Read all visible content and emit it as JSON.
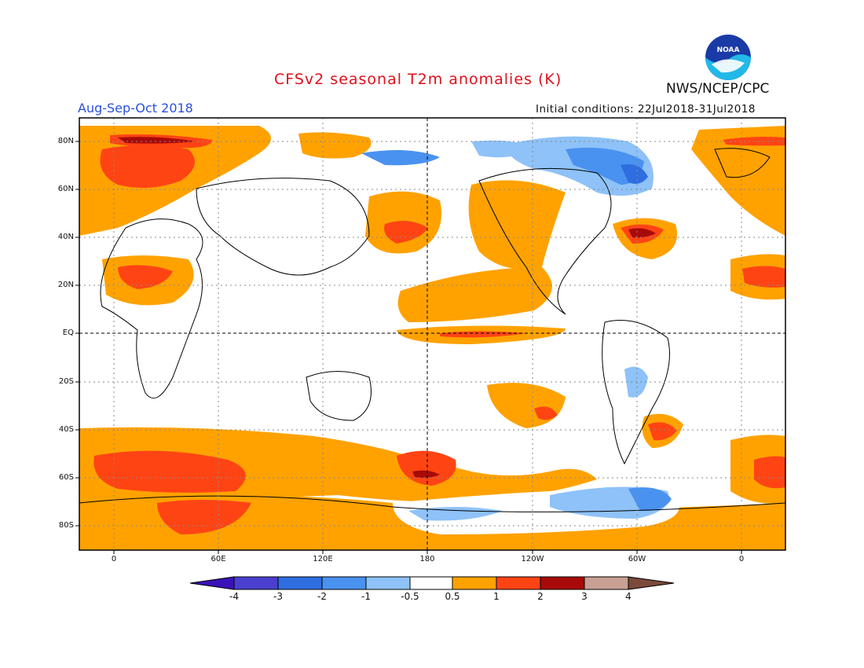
{
  "header": {
    "title": "CFSv2 seasonal T2m anomalies (K)",
    "period": "Aug-Sep-Oct 2018",
    "initial_conditions": "Initial conditions: 22Jul2018-31Jul2018",
    "agency": "NWS/NCEP/CPC",
    "logo_text": "NOAA"
  },
  "axes": {
    "lat_labels": [
      "80N",
      "60N",
      "40N",
      "20N",
      "EQ",
      "20S",
      "40S",
      "60S",
      "80S"
    ],
    "lon_labels": [
      "0",
      "60E",
      "120E",
      "180",
      "120W",
      "60W",
      "0"
    ]
  },
  "colorbar": {
    "labels": [
      "-4",
      "-3",
      "-2",
      "-1",
      "-0.5",
      "0.5",
      "1",
      "2",
      "3",
      "4"
    ],
    "colors": [
      "#3a12b8",
      "#4a3fd0",
      "#2e6ee0",
      "#4a92f0",
      "#8ec2f8",
      "#ffffff",
      "#ffa200",
      "#ff4414",
      "#a80a0a",
      "#c8a094",
      "#7a4a3a"
    ]
  },
  "anomaly_regions": [
    {
      "name": "arctic-europe",
      "level": 1
    },
    {
      "name": "russia-warm",
      "level": 2
    },
    {
      "name": "north-pacific",
      "level": 1
    },
    {
      "name": "eq-pacific",
      "level": 1
    },
    {
      "name": "eq-pacific-core",
      "level": 2
    },
    {
      "name": "canada-cold",
      "level": -1
    },
    {
      "name": "nw-atlantic",
      "level": 2
    },
    {
      "name": "southern-ocean",
      "level": 1
    },
    {
      "name": "antarctica-cold",
      "level": -0.5
    }
  ]
}
